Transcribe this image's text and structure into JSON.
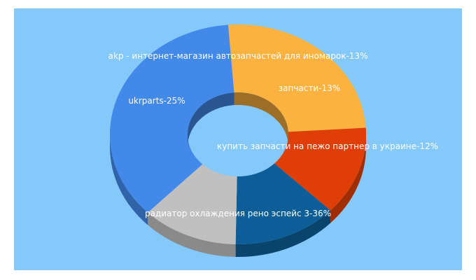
{
  "chart_data": {
    "type": "pie",
    "variant": "3d-donut",
    "title": "",
    "background_color": "#84c9f9",
    "slices": [
      {
        "label": "радиатор охлаждения рено эспейс 3-36%",
        "value": 36,
        "color": "#4289e9"
      },
      {
        "label": "ukrparts-25%",
        "value": 25,
        "color": "#fcb23f"
      },
      {
        "label": "akp - интернет-магазин автозапчастей для иномарок-13%",
        "value": 13,
        "color": "#df3f07"
      },
      {
        "label": "запчасти-13%",
        "value": 13,
        "color": "#0d5e98"
      },
      {
        "label": "купить запчасти на пежо партнер в украине-12%",
        "value": 12,
        "color": "#c0c0c0"
      }
    ]
  }
}
